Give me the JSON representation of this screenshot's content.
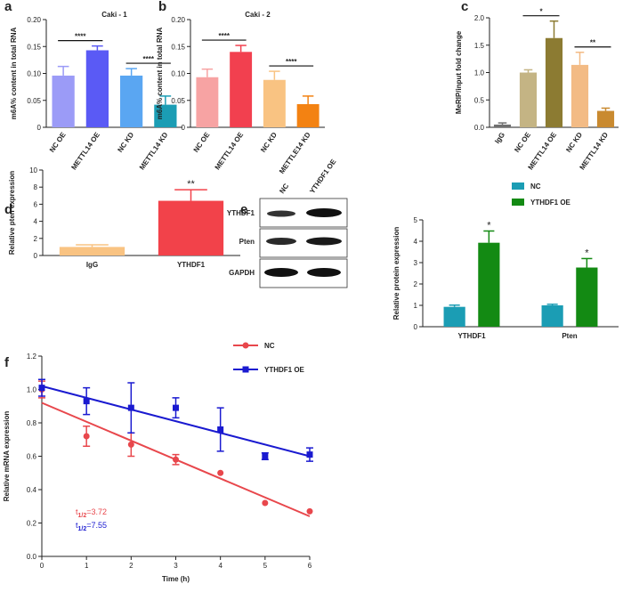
{
  "chart_data": [
    {
      "type": "bar",
      "panel_label": "a",
      "title": "Caki - 1",
      "y_label": "m6A% content in total RNA",
      "categories": [
        "NC OE",
        "METTL14 OE",
        "NC KD",
        "METTL14 KD"
      ],
      "values": [
        0.096,
        0.143,
        0.096,
        0.042
      ],
      "errors": [
        0.017,
        0.008,
        0.013,
        0.016
      ],
      "colors": [
        "#9b9bf7",
        "#5a5af5",
        "#5aa6f2",
        "#1b9db4"
      ],
      "ylim": [
        0,
        0.2
      ],
      "yticks": [
        0,
        0.05,
        {
          "value": 0.1,
          "label": "0.10"
        },
        0.15,
        {
          "value": 0.2,
          "label": "0.20"
        }
      ],
      "significance": [
        {
          "categories": [
            "NC OE",
            "METTL14 OE"
          ],
          "label": "****"
        },
        {
          "categories": [
            "NC KD",
            "METTL14 KD"
          ],
          "label": "****"
        }
      ]
    },
    {
      "type": "bar",
      "panel_label": "b",
      "title": "Caki - 2",
      "y_label": "m6A% content in total RNA",
      "categories": [
        "NC OE",
        "METTL14 OE",
        "NC KD",
        "METTLE14 KD"
      ],
      "values": [
        0.093,
        0.14,
        0.088,
        0.043
      ],
      "errors": [
        0.015,
        0.012,
        0.016,
        0.015
      ],
      "colors": [
        "#f7a3a3",
        "#f2404f",
        "#f9c382",
        "#f38212"
      ],
      "ylim": [
        0,
        0.2
      ],
      "yticks": [
        0,
        0.05,
        {
          "value": 0.1,
          "label": "0.10"
        },
        0.15,
        {
          "value": 0.2,
          "label": "0.20"
        }
      ],
      "significance": [
        {
          "categories": [
            "NC OE",
            "METTL14 OE"
          ],
          "label": "****"
        },
        {
          "categories": [
            "NC KD",
            "METTLE14 KD"
          ],
          "label": "****"
        }
      ]
    },
    {
      "type": "bar",
      "panel_label": "c",
      "y_label": "MeRIP/input fold change",
      "categories": [
        "IgG",
        "NC OE",
        "METTL14 OE",
        "NC KD",
        "METTL14 KD"
      ],
      "values": [
        0.05,
        1.0,
        1.63,
        1.14,
        0.3
      ],
      "errors": [
        0.03,
        0.05,
        0.31,
        0.23,
        0.05
      ],
      "colors": [
        "#707070",
        "#c4b484",
        "#8c7b32",
        "#f3bb85",
        "#c98a30"
      ],
      "ylim": [
        0,
        2
      ],
      "yticks": [
        {
          "value": 0,
          "label": "0.0"
        },
        0.5,
        {
          "value": 1,
          "label": "1.0"
        },
        1.5,
        {
          "value": 2,
          "label": "2.0"
        }
      ],
      "significance": [
        {
          "categories": [
            "NC OE",
            "METTL14 OE"
          ],
          "label": "*"
        },
        {
          "categories": [
            "NC KD",
            "METTL14 KD"
          ],
          "label": "**"
        }
      ]
    },
    {
      "type": "bar",
      "panel_label": "d",
      "y_label": "Relative pten expression",
      "categories": [
        "IgG",
        "YTHDF1"
      ],
      "values": [
        1.0,
        6.4
      ],
      "errors": [
        0.25,
        1.3
      ],
      "colors": [
        "#f9c382",
        "#f2424a"
      ],
      "ylim": [
        0,
        10
      ],
      "yticks": [
        0,
        2,
        4,
        6,
        8,
        10
      ],
      "significance": [
        {
          "categories": [
            "YTHDF1"
          ],
          "label": "**"
        }
      ]
    },
    {
      "type": "bar",
      "panel_label": "e",
      "y_label": "Relative protein expression",
      "categories": [
        "YTHDF1",
        "Pten"
      ],
      "series": [
        {
          "name": "NC",
          "color": "#1b9db4",
          "values": [
            0.93,
            1.0
          ],
          "errors": [
            0.08,
            0.05
          ]
        },
        {
          "name": "YTHDF1 OE",
          "color": "#138a13",
          "values": [
            3.93,
            2.77
          ],
          "errors": [
            0.55,
            0.42
          ]
        }
      ],
      "ylim": [
        0,
        5
      ],
      "yticks": [
        0,
        1,
        2,
        3,
        4,
        5
      ],
      "significance": [
        {
          "categories": [
            "YTHDF1"
          ],
          "series": "YTHDF1 OE",
          "label": "*"
        },
        {
          "categories": [
            "Pten"
          ],
          "series": "YTHDF1 OE",
          "label": "*"
        }
      ]
    },
    {
      "type": "line",
      "panel_label": "f",
      "x_label": "Time (h)",
      "y_label": "Relative mRNA expression",
      "x": [
        0,
        1,
        2,
        3,
        4,
        5,
        6
      ],
      "series": [
        {
          "name": "NC",
          "color": "#e8474c",
          "marker": "circle",
          "values": [
            1.0,
            0.72,
            0.67,
            0.58,
            0.5,
            0.32,
            0.27
          ],
          "errors": [
            0.05,
            0.06,
            0.07,
            0.03,
            0,
            0,
            0
          ],
          "fit": [
            0.92,
            0.24
          ]
        },
        {
          "name": "YTHDF1 OE",
          "color": "#1a1ad0",
          "marker": "square",
          "values": [
            1.01,
            0.93,
            0.89,
            0.89,
            0.76,
            0.6,
            0.61
          ],
          "errors": [
            0.05,
            0.08,
            0.15,
            0.06,
            0.13,
            0.02,
            0.04
          ],
          "fit": [
            1.02,
            0.6
          ]
        }
      ],
      "xlim": [
        0,
        6
      ],
      "xticks": [
        0,
        1,
        2,
        3,
        4,
        5,
        6
      ],
      "ylim": [
        0,
        1.2
      ],
      "yticks": [
        {
          "value": 0,
          "label": "0.0"
        },
        0.2,
        0.4,
        0.6,
        0.8,
        {
          "value": 1,
          "label": "1.0"
        },
        1.2
      ],
      "annotations": [
        {
          "text": "t",
          "sub": "1/2",
          "rest": "=3.72",
          "color": "#e8474c"
        },
        {
          "text": "t",
          "sub": "1/2",
          "rest": "=7.55",
          "color": "#1a1ad0"
        }
      ]
    }
  ],
  "blot": {
    "lanes": [
      "NC",
      "YTHDF1 OE"
    ],
    "rows": [
      "YTHDF1",
      "Pten",
      "GAPDH"
    ]
  }
}
